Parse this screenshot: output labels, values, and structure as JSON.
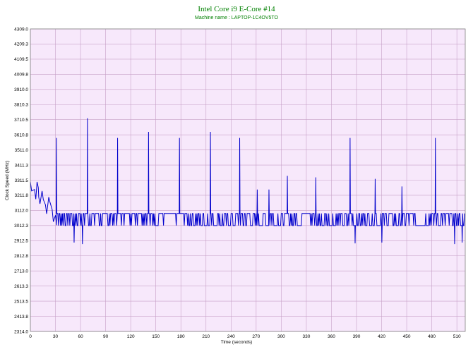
{
  "chart_data": {
    "type": "line",
    "title": "Intel Core i9 E-Core #14",
    "subtitle": "Machine name : LAPTOP-1C4OV5TO",
    "xlabel": "Time (seconds)",
    "ylabel": "Clock Speed (MHz)",
    "xlim": [
      0,
      520
    ],
    "ylim": [
      2314.0,
      4309.0
    ],
    "x_ticks": [
      0,
      30,
      60,
      90,
      120,
      150,
      180,
      210,
      240,
      270,
      300,
      330,
      360,
      390,
      420,
      450,
      480,
      510
    ],
    "y_ticks": [
      "4309.0",
      "4209.3",
      "4109.5",
      "4009.8",
      "3910.0",
      "3810.3",
      "3710.5",
      "3610.8",
      "3511.0",
      "3411.3",
      "3311.5",
      "3211.8",
      "3112.0",
      "3012.3",
      "2912.5",
      "2812.8",
      "2713.0",
      "2613.3",
      "2513.5",
      "2413.8",
      "2314.0"
    ],
    "grid": true,
    "colors": {
      "background": "#f7e8fb",
      "grid": "#c7a0c7",
      "line": "#0000cc",
      "title": "#008000"
    },
    "series": [
      {
        "name": "",
        "base_levels": [
          3012.3,
          3092.0
        ],
        "initial_segment": [
          [
            0,
            3300
          ],
          [
            5,
            3250
          ],
          [
            8,
            3300
          ],
          [
            10,
            3200
          ],
          [
            14,
            3240
          ],
          [
            18,
            3150
          ],
          [
            22,
            3200
          ],
          [
            26,
            3120
          ],
          [
            30,
            3080
          ]
        ],
        "dips": [
          [
            52,
            2900
          ],
          [
            62,
            2890
          ],
          [
            420,
            2900
          ],
          [
            388,
            2895
          ],
          [
            507,
            2890
          ],
          [
            516,
            2900
          ]
        ],
        "spikes": [
          [
            31,
            3590
          ],
          [
            68,
            3720
          ],
          [
            104,
            3590
          ],
          [
            141,
            3630
          ],
          [
            178,
            3590
          ],
          [
            215,
            3630
          ],
          [
            250,
            3590
          ],
          [
            271,
            3250
          ],
          [
            285,
            3250
          ],
          [
            307,
            3340
          ],
          [
            341,
            3330
          ],
          [
            382,
            3590
          ],
          [
            412,
            3320
          ],
          [
            444,
            3270
          ],
          [
            484,
            3590
          ]
        ]
      }
    ]
  }
}
